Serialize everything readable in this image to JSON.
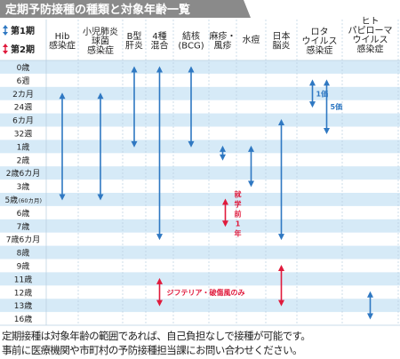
{
  "title": "定期予防接種の種類と対象年齢一覧",
  "legend": {
    "first": "第1期",
    "second": "第2期"
  },
  "colors": {
    "first": "#2f78c2",
    "second": "#e01a3c",
    "band": "#d6eaf7",
    "title_bg": "#8a8a8a",
    "grid": "#b9cfe0"
  },
  "chart_data": {
    "type": "table",
    "columns": [
      {
        "key": "hib",
        "lines": [
          "Hib",
          "感染症"
        ]
      },
      {
        "key": "pcv",
        "lines": [
          "小児肺炎",
          "球菌",
          "感染症"
        ]
      },
      {
        "key": "hepb",
        "lines": [
          "B型",
          "肝炎"
        ]
      },
      {
        "key": "dpt",
        "lines": [
          "4種",
          "混合"
        ]
      },
      {
        "key": "bcg",
        "lines": [
          "結核",
          "(BCG)"
        ]
      },
      {
        "key": "mr",
        "lines": [
          "麻疹・",
          "風疹"
        ]
      },
      {
        "key": "varicella",
        "lines": [
          "水痘"
        ]
      },
      {
        "key": "je",
        "lines": [
          "日本",
          "脳炎"
        ]
      },
      {
        "key": "rota",
        "lines": [
          "ロタ",
          "ウイルス",
          "感染症"
        ]
      },
      {
        "key": "hpv",
        "lines": [
          "ヒト",
          "パピローマ",
          "ウイルス",
          "感染症"
        ]
      }
    ],
    "ages": [
      {
        "main": "0歳",
        "small": ""
      },
      {
        "main": "6週",
        "small": ""
      },
      {
        "main": "2カ月",
        "small": ""
      },
      {
        "main": "24週",
        "small": ""
      },
      {
        "main": "6カ月",
        "small": ""
      },
      {
        "main": "32週",
        "small": ""
      },
      {
        "main": "1歳",
        "small": ""
      },
      {
        "main": "2歳",
        "small": ""
      },
      {
        "main": "2歳6カ月",
        "small": ""
      },
      {
        "main": "3歳",
        "small": ""
      },
      {
        "main": "5歳",
        "small": "(60カ月)"
      },
      {
        "main": "6歳",
        "small": ""
      },
      {
        "main": "7歳",
        "small": ""
      },
      {
        "main": "7歳6カ月",
        "small": ""
      },
      {
        "main": "8歳",
        "small": ""
      },
      {
        "main": "9歳",
        "small": ""
      },
      {
        "main": "11歳",
        "small": ""
      },
      {
        "main": "12歳",
        "small": ""
      },
      {
        "main": "13歳",
        "small": ""
      },
      {
        "main": "16歳",
        "small": ""
      }
    ],
    "ranges": [
      {
        "column": "hib",
        "period": "first",
        "from": "2カ月",
        "to": "5歳"
      },
      {
        "column": "pcv",
        "period": "first",
        "from": "2カ月",
        "to": "5歳"
      },
      {
        "column": "hepb",
        "period": "first",
        "from": "0歳",
        "to": "1歳"
      },
      {
        "column": "dpt",
        "period": "first",
        "from": "0歳",
        "to": "7歳6カ月"
      },
      {
        "column": "dpt",
        "period": "second",
        "from": "11歳",
        "to": "13歳",
        "label": "ジフテリア・破傷風のみ"
      },
      {
        "column": "bcg",
        "period": "first",
        "from": "0歳",
        "to": "1歳"
      },
      {
        "column": "mr",
        "period": "first",
        "from": "1歳",
        "to": "2歳"
      },
      {
        "column": "mr",
        "period": "second",
        "from": "5歳",
        "to": "7歳",
        "label": "就学前1年"
      },
      {
        "column": "varicella",
        "period": "first",
        "from": "1歳",
        "to": "3歳"
      },
      {
        "column": "je",
        "period": "first",
        "from": "6カ月",
        "to": "7歳6カ月"
      },
      {
        "column": "je",
        "period": "second",
        "from": "9歳",
        "to": "13歳"
      },
      {
        "column": "rota",
        "period": "first",
        "from": "6週",
        "to": "24週",
        "label": "1価"
      },
      {
        "column": "rota",
        "period": "first",
        "from": "6週",
        "to": "32週",
        "label": "5価"
      },
      {
        "column": "hpv",
        "period": "first",
        "from": "12歳",
        "to": "16歳"
      }
    ]
  },
  "footer": {
    "line1": "定期接種は対象年齢の範囲であれば、自己負担なしで接種が可能です。",
    "line2": "事前に医療機関や市町村の予防接種担当課にお問い合わせください。"
  }
}
